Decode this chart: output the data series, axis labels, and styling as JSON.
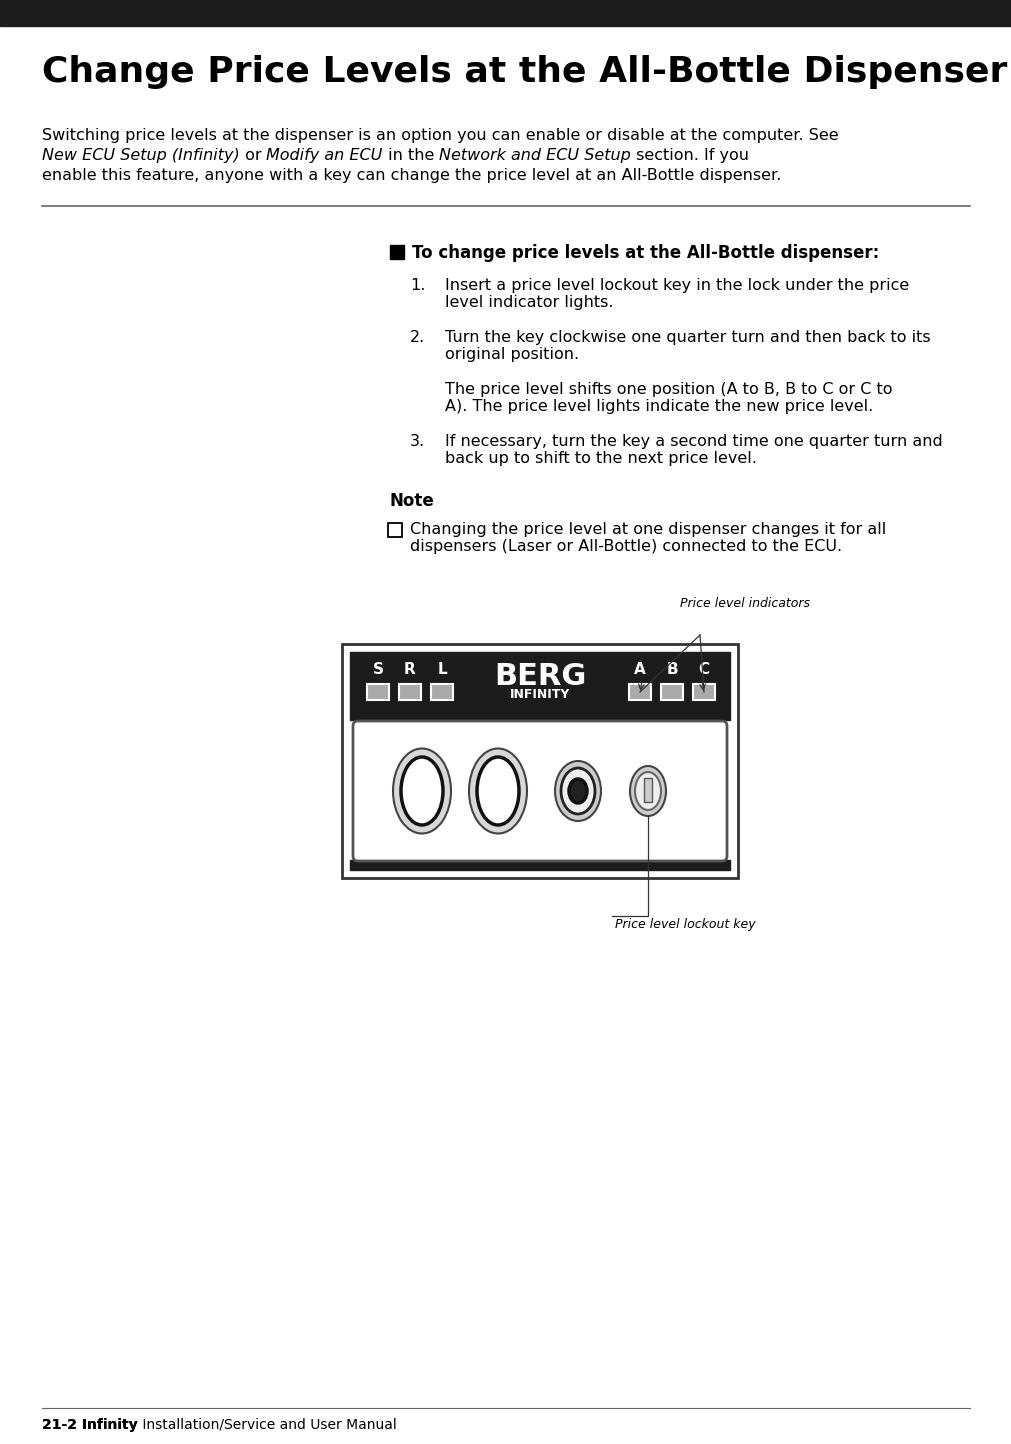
{
  "title": "Change Price Levels at the All-Bottle Dispenser",
  "intro_line1": "Switching price levels at the dispenser is an option you can enable or disable at the computer. See",
  "intro_line2_parts": [
    [
      "New ECU Setup (Infinity)",
      true
    ],
    [
      " or ",
      false
    ],
    [
      "Modify an ECU",
      true
    ],
    [
      " in the ",
      false
    ],
    [
      "Network and ECU Setup",
      true
    ],
    [
      " section. If you",
      false
    ]
  ],
  "intro_line3": "enable this feature, anyone with a key can change the price level at an All-Bottle dispenser.",
  "procedure_heading": "To change price levels at the All-Bottle dispenser:",
  "step1": "Insert a price level lockout key in the lock under the price\nlevel indicator lights.",
  "step2": "Turn the key clockwise one quarter turn and then back to its\noriginal position.",
  "step2b": "The price level shifts one position (A to B, B to C or C to\nA). The price level lights indicate the new price level.",
  "step3": "If necessary, turn the key a second time one quarter turn and\nback up to shift to the next price level.",
  "note_heading": "Note",
  "note_text": "Changing the price level at one dispenser changes it for all\ndispensers (Laser or All-Bottle) connected to the ECU.",
  "label_indicators": "Price level indicators",
  "label_lockout": "Price level lockout key",
  "footer_bold": "21-2 Infinity",
  "footer_rest": " Installation/Service and User Manual",
  "bg_color": "#ffffff",
  "text_color": "#000000",
  "bar_color": "#1c1c1c",
  "disp_bg": "#1c1c1c",
  "rule_color": "#666666"
}
